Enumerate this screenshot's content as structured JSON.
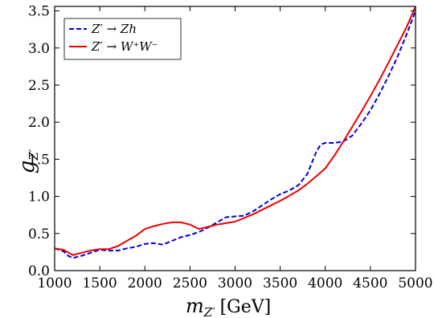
{
  "chart_data": {
    "type": "line",
    "xlabel": {
      "var": "m",
      "sub": "Z′",
      "unit": "[GeV]"
    },
    "ylabel": {
      "var": "g",
      "sub": "Z′"
    },
    "xlim": [
      1000,
      5000
    ],
    "ylim": [
      0.0,
      3.56
    ],
    "x_ticks": [
      1000,
      1500,
      2000,
      2500,
      3000,
      3500,
      4000,
      4500,
      5000
    ],
    "y_ticks": [
      0.0,
      0.5,
      1.0,
      1.5,
      2.0,
      2.5,
      3.0,
      3.5
    ],
    "x_tick_labels": [
      "1000",
      "1500",
      "2000",
      "2500",
      "3000",
      "3500",
      "4000",
      "4500",
      "5000"
    ],
    "y_tick_labels": [
      "0.0",
      "0.5",
      "1.0",
      "1.5",
      "2.0",
      "2.5",
      "3.0",
      "3.5"
    ],
    "grid": false,
    "legend_position": "top-left",
    "series": [
      {
        "name": "Z′ → Zh",
        "color": "#0000dd",
        "style": "dashed",
        "x": [
          1000,
          1100,
          1150,
          1200,
          1300,
          1400,
          1500,
          1600,
          1700,
          1800,
          1900,
          2000,
          2100,
          2200,
          2300,
          2400,
          2500,
          2600,
          2700,
          2800,
          2900,
          3000,
          3100,
          3200,
          3300,
          3400,
          3500,
          3600,
          3700,
          3800,
          3850,
          3900,
          3950,
          4000,
          4100,
          4200,
          4300,
          4400,
          4500,
          4600,
          4700,
          4800,
          4900,
          5000
        ],
        "y": [
          0.3,
          0.26,
          0.2,
          0.17,
          0.2,
          0.24,
          0.28,
          0.27,
          0.27,
          0.3,
          0.32,
          0.36,
          0.37,
          0.35,
          0.4,
          0.45,
          0.48,
          0.52,
          0.58,
          0.65,
          0.72,
          0.73,
          0.74,
          0.8,
          0.88,
          0.96,
          1.03,
          1.08,
          1.15,
          1.3,
          1.45,
          1.6,
          1.7,
          1.72,
          1.72,
          1.74,
          1.82,
          1.98,
          2.16,
          2.38,
          2.62,
          2.88,
          3.18,
          3.5
        ]
      },
      {
        "name": "Z′ → W⁺W⁻",
        "color": "#ee0000",
        "style": "solid",
        "x": [
          1000,
          1100,
          1200,
          1300,
          1400,
          1500,
          1600,
          1700,
          1800,
          1900,
          2000,
          2100,
          2200,
          2300,
          2400,
          2500,
          2600,
          2700,
          2800,
          2900,
          3000,
          3100,
          3200,
          3300,
          3400,
          3500,
          3600,
          3700,
          3800,
          3900,
          4000,
          4100,
          4200,
          4300,
          4400,
          4500,
          4600,
          4700,
          4800,
          4900,
          5000
        ],
        "y": [
          0.3,
          0.28,
          0.21,
          0.24,
          0.27,
          0.29,
          0.29,
          0.33,
          0.4,
          0.47,
          0.56,
          0.6,
          0.63,
          0.65,
          0.65,
          0.62,
          0.56,
          0.59,
          0.62,
          0.64,
          0.66,
          0.71,
          0.76,
          0.82,
          0.88,
          0.94,
          1.01,
          1.08,
          1.17,
          1.27,
          1.38,
          1.55,
          1.74,
          1.94,
          2.14,
          2.35,
          2.57,
          2.8,
          3.04,
          3.28,
          3.56
        ]
      }
    ]
  }
}
